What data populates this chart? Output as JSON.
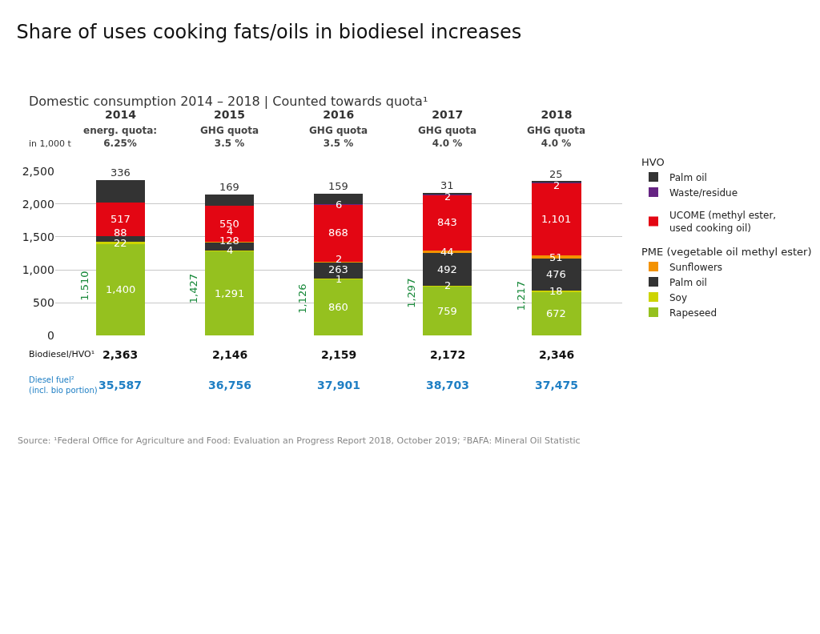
{
  "chart_data": {
    "type": "bar",
    "stacked": true,
    "title": "Share of uses cooking fats/oils in biodiesel increases",
    "subtitle": "Domestic consumption 2014 – 2018 | Counted towards quota¹",
    "ylabel": "in 1,000 t",
    "categories": [
      "2014",
      "2015",
      "2016",
      "2017",
      "2018"
    ],
    "series": [
      {
        "name": "Rapeseed",
        "color": "#95c11f",
        "values": [
          1400,
          1291,
          860,
          759,
          672
        ],
        "value_labels": [
          "1,400",
          "1,291",
          "860",
          "759",
          "672"
        ]
      },
      {
        "name": "Soy",
        "color": "#cdd400",
        "values": [
          22,
          4,
          1,
          2,
          18
        ],
        "value_labels": [
          "22",
          "4",
          "1",
          "2",
          "18"
        ]
      },
      {
        "name": "Palm oil",
        "color": "#333333",
        "values": [
          88,
          128,
          263,
          492,
          476
        ],
        "value_labels": [
          "88",
          "128",
          "263",
          "492",
          "476"
        ]
      },
      {
        "name": "Sunflowers",
        "color": "#f39200",
        "values": [
          null,
          4,
          2,
          44,
          51
        ],
        "value_labels": [
          null,
          "4",
          "2",
          "44",
          "51"
        ]
      },
      {
        "name": "UCOME (methyl ester, used cooking oil)",
        "color": "#e30613",
        "values": [
          517,
          550,
          868,
          843,
          1101
        ],
        "value_labels": [
          "517",
          "550",
          "868",
          "843",
          "1,101"
        ]
      },
      {
        "name": "Waste/residue",
        "color": "#662483",
        "values": [
          null,
          null,
          6,
          2,
          2
        ],
        "value_labels": [
          null,
          null,
          "6",
          "2",
          "2"
        ]
      },
      {
        "name": "Palm oil",
        "color": "#333333",
        "values": [
          336,
          169,
          159,
          31,
          25
        ],
        "value_labels": [
          "336",
          "169",
          "159",
          "31",
          "25"
        ]
      }
    ],
    "totals": [
      "2,363",
      "2,146",
      "2,159",
      "2,172",
      "2,346"
    ],
    "ylim": [
      0,
      2500
    ],
    "yticks": [
      {
        "value": 0,
        "label": "0"
      },
      {
        "value": 500,
        "label": "500"
      },
      {
        "value": 1000,
        "label": "1,000"
      },
      {
        "value": 1500,
        "label": "1,500"
      },
      {
        "value": 2000,
        "label": "2,000"
      },
      {
        "value": 2500,
        "label": "2,500"
      }
    ],
    "grid": "y",
    "legend": "right",
    "annotations": [
      "energ. quota:\n6.25%",
      "GHG quota\n3.5 %",
      "GHG quota\n3.5 %",
      "GHG quota\n4.0 %",
      "GHG quota\n4.0 %",
      "Biodiesel/HVO¹",
      "Diesel fuel²\n(incl. bio portion)",
      "35,587",
      "36,756",
      "37,901",
      "38,703",
      "37,475",
      "1.510",
      "1,427",
      "1,126",
      "1,297",
      "1,217",
      "HVO",
      "PME (vegetable oil methyl ester)",
      "Source: ¹Federal Office for Agriculture and Food: Evaluation an Progress Report 2018, October 2019; ²BAFA: Mineral Oil Statistic"
    ]
  }
}
